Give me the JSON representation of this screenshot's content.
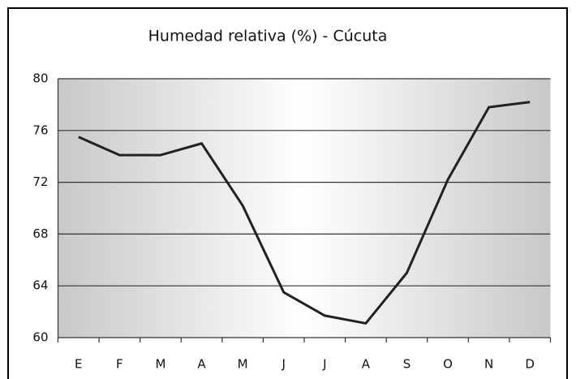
{
  "chart_data": {
    "type": "line",
    "title": "Humedad relativa (%) - Cúcuta",
    "categories": [
      "E",
      "F",
      "M",
      "A",
      "M",
      "J",
      "J",
      "A",
      "S",
      "O",
      "N",
      "D"
    ],
    "series": [
      {
        "name": "Humedad relativa",
        "color": "#222222",
        "values": [
          75.5,
          74.1,
          74.1,
          75.0,
          70.2,
          63.5,
          61.7,
          61.1,
          65.0,
          72.2,
          77.8,
          78.2
        ]
      }
    ],
    "ylim": [
      60,
      80
    ],
    "yticks": [
      60,
      64,
      68,
      72,
      76,
      80
    ],
    "grid": true
  }
}
